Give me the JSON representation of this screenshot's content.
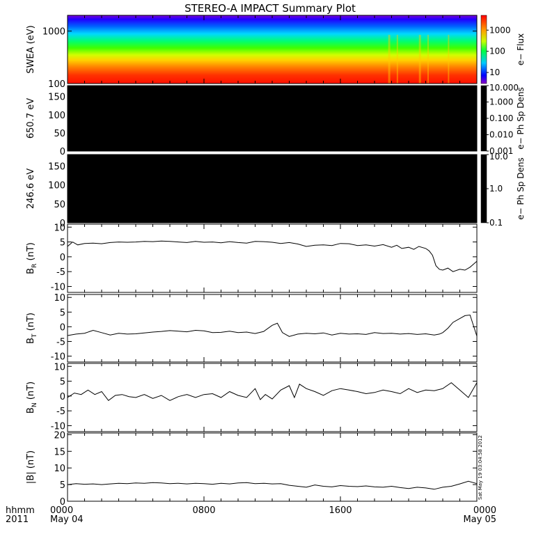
{
  "title": "STEREO-A IMPACT Summary Plot",
  "time_axis": {
    "label_row1": "hhmm",
    "label_row2": "2011",
    "ticks": [
      {
        "hhmm": "0000",
        "date": "May 04",
        "hour": 0
      },
      {
        "hhmm": "0800",
        "date": "",
        "hour": 8
      },
      {
        "hhmm": "1600",
        "date": "",
        "hour": 16
      },
      {
        "hhmm": "0000",
        "date": "May 05",
        "hour": 24
      }
    ]
  },
  "stamp": "Sat May 19 03:04:58 2012",
  "chart_data": [
    {
      "type": "heatmap",
      "id": "swea",
      "ylabel": "SWEA (eV)",
      "ylog": true,
      "ylim": [
        100,
        2000
      ],
      "yticks": [
        100,
        1000
      ],
      "ytick_labels": [
        "100",
        "1000"
      ],
      "colorbar": {
        "label": "e− Flux",
        "log": true,
        "range": [
          3,
          5000
        ],
        "ticks": [
          "10",
          "100",
          "1000"
        ],
        "tick_values": [
          10,
          100,
          1000
        ]
      },
      "colors": {
        "low": "#0000ff",
        "mid": "#00ff00",
        "high": "#ff0000"
      }
    },
    {
      "type": "heatmap",
      "id": "pad650",
      "ylabel": "650.7 eV",
      "ylim": [
        0,
        180
      ],
      "yticks": [
        0,
        50,
        100,
        150
      ],
      "colorbar": {
        "label": "e− Ph Sp Dens",
        "log": true,
        "range": [
          0.001,
          10
        ],
        "ticks": [
          "10.000",
          "1.000",
          "0.100",
          "0.010",
          "0.001"
        ],
        "tick_values": [
          10,
          1,
          0.1,
          0.01,
          0.001
        ]
      },
      "fill": "#000000"
    },
    {
      "type": "heatmap",
      "id": "pad246",
      "ylabel": "246.6 eV",
      "ylim": [
        0,
        180
      ],
      "yticks": [
        0,
        50,
        100,
        150
      ],
      "colorbar": {
        "label": "e− Ph Sp Dens",
        "log": true,
        "range": [
          0.1,
          10
        ],
        "ticks": [
          "10.0",
          "1.0",
          "0.1"
        ],
        "tick_values": [
          10,
          1,
          0.1
        ]
      },
      "fill": "#000000"
    },
    {
      "type": "line",
      "id": "br",
      "ylabel": "B",
      "ylabel_sub": "R",
      "ylabel_unit": "(nT)",
      "ylim": [
        -12,
        11
      ],
      "yticks": [
        -10,
        -5,
        0,
        5,
        10
      ],
      "x_hours": [
        0,
        0.3,
        0.6,
        1,
        1.5,
        2,
        2.5,
        3,
        3.5,
        4,
        4.5,
        5,
        5.5,
        6,
        6.5,
        7,
        7.5,
        8,
        8.5,
        9,
        9.5,
        10,
        10.5,
        11,
        11.5,
        12,
        12.5,
        13,
        13.5,
        14,
        14.5,
        15,
        15.5,
        16,
        16.5,
        17,
        17.5,
        18,
        18.5,
        19,
        19.3,
        19.6,
        20,
        20.3,
        20.6,
        21,
        21.2,
        21.4,
        21.6,
        21.8,
        22,
        22.3,
        22.6,
        23,
        23.3,
        23.6,
        24
      ],
      "values": [
        3.5,
        5,
        4,
        4.5,
        4.6,
        4.4,
        4.8,
        5,
        4.9,
        5,
        5.2,
        5.1,
        5.3,
        5.2,
        5,
        4.8,
        5.2,
        4.9,
        5,
        4.7,
        5.1,
        4.8,
        4.6,
        5.2,
        5.1,
        4.9,
        4.5,
        4.8,
        4.3,
        3.5,
        3.9,
        4,
        3.8,
        4.5,
        4.4,
        3.8,
        4,
        3.6,
        4.1,
        3.2,
        3.9,
        2.8,
        3.2,
        2.5,
        3.5,
        2.8,
        2,
        0.5,
        -3,
        -4.2,
        -4.5,
        -3.8,
        -5,
        -4.2,
        -4.5,
        -3.5,
        -1.5
      ]
    },
    {
      "type": "line",
      "id": "bt",
      "ylabel": "B",
      "ylabel_sub": "T",
      "ylabel_unit": "(nT)",
      "ylim": [
        -12,
        11
      ],
      "yticks": [
        -10,
        -5,
        0,
        5,
        10
      ],
      "x_hours": [
        0,
        0.5,
        1,
        1.5,
        2,
        2.5,
        3,
        3.5,
        4,
        4.5,
        5,
        5.5,
        6,
        6.5,
        7,
        7.5,
        8,
        8.5,
        9,
        9.5,
        10,
        10.5,
        11,
        11.5,
        12,
        12.3,
        12.6,
        13,
        13.5,
        14,
        14.5,
        15,
        15.5,
        16,
        16.5,
        17,
        17.5,
        18,
        18.5,
        19,
        19.5,
        20,
        20.5,
        21,
        21.5,
        21.8,
        22,
        22.3,
        22.6,
        23,
        23.3,
        23.6,
        24
      ],
      "values": [
        -3,
        -2.5,
        -2.2,
        -1.2,
        -2,
        -2.8,
        -2.2,
        -2.5,
        -2.4,
        -2.1,
        -1.8,
        -1.6,
        -1.3,
        -1.5,
        -1.7,
        -1.2,
        -1.4,
        -2,
        -1.9,
        -1.5,
        -2,
        -1.8,
        -2.3,
        -1.6,
        0.5,
        1.2,
        -2,
        -3.3,
        -2.5,
        -2.2,
        -2.4,
        -2.1,
        -2.8,
        -2.2,
        -2.5,
        -2.4,
        -2.6,
        -2,
        -2.3,
        -2.2,
        -2.5,
        -2.3,
        -2.6,
        -2.4,
        -2.8,
        -2.5,
        -2,
        -0.5,
        1.5,
        2.8,
        3.8,
        4,
        -3.2
      ]
    },
    {
      "type": "line",
      "id": "bn",
      "ylabel": "B",
      "ylabel_sub": "N",
      "ylabel_unit": "(nT)",
      "ylim": [
        -12,
        11
      ],
      "yticks": [
        -10,
        -5,
        0,
        5,
        10
      ],
      "x_hours": [
        0,
        0.4,
        0.8,
        1.2,
        1.6,
        2,
        2.4,
        2.8,
        3.2,
        3.6,
        4,
        4.5,
        5,
        5.5,
        6,
        6.5,
        7,
        7.5,
        8,
        8.5,
        9,
        9.5,
        10,
        10.5,
        11,
        11.3,
        11.6,
        12,
        12.5,
        13,
        13.3,
        13.6,
        14,
        14.5,
        15,
        15.5,
        16,
        16.5,
        17,
        17.5,
        18,
        18.5,
        19,
        19.5,
        20,
        20.5,
        21,
        21.5,
        22,
        22.5,
        23,
        23.5,
        24
      ],
      "values": [
        -0.5,
        1,
        0.5,
        2,
        0.5,
        1.5,
        -1.5,
        0.2,
        0.5,
        -0.2,
        -0.5,
        0.5,
        -0.8,
        0.2,
        -1.5,
        -0.2,
        0.5,
        -0.5,
        0.5,
        0.8,
        -0.5,
        1.5,
        0.2,
        -0.5,
        2.5,
        -1.2,
        0.5,
        -1,
        2,
        3.5,
        -0.5,
        4,
        2.5,
        1.5,
        0.2,
        1.8,
        2.5,
        2,
        1.5,
        0.8,
        1.2,
        2,
        1.5,
        0.8,
        2.5,
        1.2,
        2,
        1.8,
        2.5,
        4.5,
        2,
        -0.5,
        4.5
      ]
    },
    {
      "type": "line",
      "id": "bmag",
      "ylabel": "|B| (nT)",
      "ylim": [
        0,
        20.5
      ],
      "yticks": [
        0,
        5,
        10,
        15,
        20
      ],
      "x_hours": [
        0,
        0.5,
        1,
        1.5,
        2,
        2.5,
        3,
        3.5,
        4,
        4.5,
        5,
        5.5,
        6,
        6.5,
        7,
        7.5,
        8,
        8.5,
        9,
        9.5,
        10,
        10.5,
        11,
        11.5,
        12,
        12.5,
        13,
        13.5,
        14,
        14.5,
        15,
        15.5,
        16,
        16.5,
        17,
        17.5,
        18,
        18.5,
        19,
        19.5,
        20,
        20.5,
        21,
        21.5,
        22,
        22.5,
        23,
        23.5,
        24
      ],
      "values": [
        5,
        5.3,
        5.1,
        5.2,
        5,
        5.2,
        5.4,
        5.3,
        5.5,
        5.4,
        5.6,
        5.5,
        5.3,
        5.4,
        5.2,
        5.4,
        5.3,
        5.1,
        5.4,
        5.2,
        5.5,
        5.6,
        5.3,
        5.4,
        5.2,
        5.3,
        4.8,
        4.5,
        4.2,
        4.9,
        4.5,
        4.3,
        4.7,
        4.5,
        4.4,
        4.6,
        4.3,
        4.2,
        4.5,
        4.1,
        3.8,
        4.2,
        4,
        3.6,
        4.2,
        4.5,
        5.2,
        6,
        5.3
      ]
    }
  ]
}
